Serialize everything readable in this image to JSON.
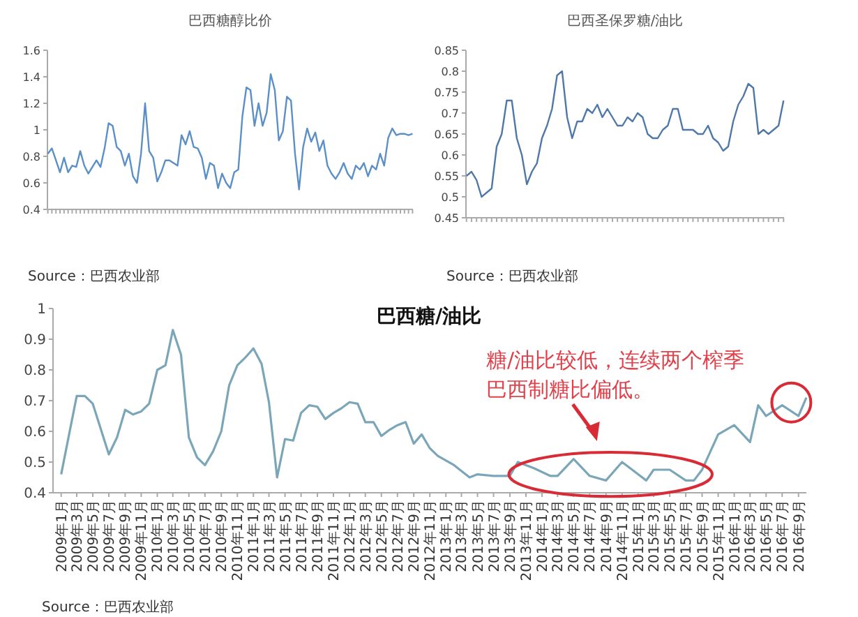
{
  "chart_data": [
    {
      "type": "line",
      "title": "巴西糖醇比价",
      "categories": [
        null,
        null,
        null,
        null,
        null,
        null,
        null,
        null,
        null,
        null,
        null,
        null,
        null,
        null,
        null,
        null,
        null,
        null,
        null,
        null,
        null,
        null,
        null,
        null,
        null,
        null,
        null,
        null,
        null,
        null,
        null,
        null,
        null,
        null,
        null,
        null,
        null,
        null,
        null,
        null,
        null,
        null,
        null,
        null,
        null,
        null,
        null,
        null,
        null,
        null,
        null,
        null,
        null,
        null,
        null,
        null,
        null,
        null,
        null,
        null,
        null,
        null,
        null,
        null,
        null,
        null,
        null,
        null,
        null,
        null,
        null,
        null,
        null,
        null,
        null,
        null,
        null,
        null,
        null,
        null,
        null,
        null,
        null,
        null,
        null,
        null,
        null,
        null,
        null,
        null,
        null
      ],
      "color": "#5b8fc7",
      "values": [
        0.82,
        0.86,
        0.77,
        0.68,
        0.79,
        0.68,
        0.73,
        0.72,
        0.84,
        0.73,
        0.67,
        0.72,
        0.77,
        0.72,
        0.86,
        1.05,
        1.03,
        0.87,
        0.84,
        0.73,
        0.82,
        0.65,
        0.6,
        0.82,
        1.2,
        0.84,
        0.79,
        0.61,
        0.68,
        0.77,
        0.77,
        0.75,
        0.73,
        0.96,
        0.89,
        0.99,
        0.87,
        0.86,
        0.79,
        0.63,
        0.75,
        0.73,
        0.56,
        0.67,
        0.6,
        0.56,
        0.68,
        0.7,
        1.1,
        1.32,
        1.3,
        1.03,
        1.2,
        1.03,
        1.13,
        1.42,
        1.3,
        0.92,
        0.99,
        1.25,
        1.22,
        0.82,
        0.55,
        0.87,
        1.01,
        0.91,
        0.98,
        0.84,
        0.92,
        0.73,
        0.67,
        0.63,
        0.68,
        0.75,
        0.67,
        0.63,
        0.73,
        0.7,
        0.75,
        0.65,
        0.73,
        0.7,
        0.82,
        0.73,
        0.94,
        1.01,
        0.96,
        0.97,
        0.97,
        0.96,
        0.97
      ],
      "ylim": [
        0.4,
        1.6
      ],
      "yticks": [
        0.4,
        0.6,
        0.8,
        1,
        1.2,
        1.4,
        1.6
      ],
      "tick_labels": "y",
      "annotations": [
        "Source：巴西农业部"
      ]
    },
    {
      "type": "line",
      "title": "巴西圣保罗糖/油比",
      "categories": [
        null,
        null,
        null,
        null,
        null,
        null,
        null,
        null,
        null,
        null,
        null,
        null,
        null,
        null,
        null,
        null,
        null,
        null,
        null,
        null,
        null,
        null,
        null,
        null,
        null,
        null,
        null,
        null,
        null,
        null,
        null,
        null,
        null,
        null,
        null,
        null,
        null,
        null,
        null,
        null,
        null,
        null,
        null,
        null,
        null,
        null,
        null,
        null,
        null,
        null,
        null,
        null,
        null,
        null,
        null,
        null,
        null,
        null,
        null,
        null,
        null,
        null,
        null,
        null
      ],
      "color": "#4f78a8",
      "values": [
        0.55,
        0.56,
        0.54,
        0.5,
        0.51,
        0.52,
        0.62,
        0.65,
        0.73,
        0.73,
        0.64,
        0.6,
        0.53,
        0.56,
        0.58,
        0.64,
        0.67,
        0.71,
        0.79,
        0.8,
        0.69,
        0.64,
        0.68,
        0.68,
        0.71,
        0.7,
        0.72,
        0.69,
        0.71,
        0.69,
        0.67,
        0.67,
        0.69,
        0.68,
        0.7,
        0.69,
        0.65,
        0.64,
        0.64,
        0.66,
        0.67,
        0.71,
        0.71,
        0.66,
        0.66,
        0.66,
        0.65,
        0.65,
        0.67,
        0.64,
        0.63,
        0.61,
        0.62,
        0.68,
        0.72,
        0.74,
        0.77,
        0.76,
        0.65,
        0.66,
        0.65,
        0.66,
        0.67,
        0.73
      ],
      "ylim": [
        0.45,
        0.85
      ],
      "yticks": [
        0.45,
        0.5,
        0.55,
        0.6,
        0.65,
        0.7,
        0.75,
        0.8,
        0.85
      ],
      "tick_labels": "y",
      "annotations": [
        "Source：巴西农业部"
      ]
    },
    {
      "type": "line",
      "title": "巴西糖/油比",
      "color": "#7aa6b8",
      "x": [
        "2009-01",
        "2009-03",
        "2009-04",
        "2009-05",
        "2009-07",
        "2009-08",
        "2009-09",
        "2009-10",
        "2009-11",
        "2009-12",
        "2010-01",
        "2010-02",
        "2010-03",
        "2010-04",
        "2010-05",
        "2010-06",
        "2010-07",
        "2010-08",
        "2010-09",
        "2010-10",
        "2010-11",
        "2010-12",
        "2011-01",
        "2011-02",
        "2011-03",
        "2011-04",
        "2011-05",
        "2011-06",
        "2011-07",
        "2011-08",
        "2011-09",
        "2011-10",
        "2011-11",
        "2011-12",
        "2012-01",
        "2012-02",
        "2012-03",
        "2012-04",
        "2012-05",
        "2012-06",
        "2012-07",
        "2012-08",
        "2012-09",
        "2012-10",
        "2012-11",
        "2012-12",
        "2013-02",
        "2013-04",
        "2013-05",
        "2013-07",
        "2013-09",
        "2013-10",
        "2013-12",
        "2014-02",
        "2014-03",
        "2014-05",
        "2014-07",
        "2014-09",
        "2014-11",
        "2015-01",
        "2015-02",
        "2015-03",
        "2015-05",
        "2015-07",
        "2015-08",
        "2015-09",
        "2015-11",
        "2016-01",
        "2016-03",
        "2016-04",
        "2016-05",
        "2016-07",
        "2016-09",
        "2016-10"
      ],
      "values": [
        0.46,
        0.715,
        0.715,
        0.69,
        0.525,
        0.58,
        0.67,
        0.655,
        0.665,
        0.69,
        0.8,
        0.815,
        0.93,
        0.85,
        0.58,
        0.515,
        0.49,
        0.535,
        0.6,
        0.75,
        0.815,
        0.84,
        0.87,
        0.82,
        0.695,
        0.45,
        0.575,
        0.57,
        0.66,
        0.685,
        0.68,
        0.64,
        0.66,
        0.675,
        0.695,
        0.69,
        0.63,
        0.63,
        0.585,
        0.605,
        0.62,
        0.63,
        0.56,
        0.59,
        0.545,
        0.52,
        0.49,
        0.45,
        0.46,
        0.455,
        0.455,
        0.5,
        0.48,
        0.455,
        0.455,
        0.51,
        0.455,
        0.44,
        0.5,
        0.46,
        0.44,
        0.475,
        0.475,
        0.44,
        0.44,
        0.475,
        0.59,
        0.62,
        0.565,
        0.685,
        0.65,
        0.685,
        0.65,
        0.71
      ],
      "xlim": [
        "2008-12",
        "2016-10"
      ],
      "xticks": [
        {
          "value": "2009-01",
          "label": "2009年1月"
        },
        {
          "value": "2009-03",
          "label": "2009年3月"
        },
        {
          "value": "2009-05",
          "label": "2009年5月"
        },
        {
          "value": "2009-07",
          "label": "2009年7月"
        },
        {
          "value": "2009-09",
          "label": "2009年9月"
        },
        {
          "value": "2009-11",
          "label": "2009年11月"
        },
        {
          "value": "2010-01",
          "label": "2010年1月"
        },
        {
          "value": "2010-03",
          "label": "2010年3月"
        },
        {
          "value": "2010-05",
          "label": "2010年5月"
        },
        {
          "value": "2010-07",
          "label": "2010年7月"
        },
        {
          "value": "2010-09",
          "label": "2010年9月"
        },
        {
          "value": "2010-11",
          "label": "2010年11月"
        },
        {
          "value": "2011-01",
          "label": "2011年1月"
        },
        {
          "value": "2011-03",
          "label": "2011年3月"
        },
        {
          "value": "2011-05",
          "label": "2011年5月"
        },
        {
          "value": "2011-07",
          "label": "2011年7月"
        },
        {
          "value": "2011-09",
          "label": "2011年9月"
        },
        {
          "value": "2011-11",
          "label": "2011年11月"
        },
        {
          "value": "2012-01",
          "label": "2012年1月"
        },
        {
          "value": "2012-03",
          "label": "2012年3月"
        },
        {
          "value": "2012-05",
          "label": "2012年5月"
        },
        {
          "value": "2012-07",
          "label": "2012年7月"
        },
        {
          "value": "2012-09",
          "label": "2012年9月"
        },
        {
          "value": "2012-11",
          "label": "2012年11月"
        },
        {
          "value": "2013-01",
          "label": "2013年1月"
        },
        {
          "value": "2013-03",
          "label": "2013年3月"
        },
        {
          "value": "2013-05",
          "label": "2013年5月"
        },
        {
          "value": "2013-07",
          "label": "2013年7月"
        },
        {
          "value": "2013-09",
          "label": "2013年9月"
        },
        {
          "value": "2013-11",
          "label": "2013年11月"
        },
        {
          "value": "2014-01",
          "label": "2014年1月"
        },
        {
          "value": "2014-03",
          "label": "2014年3月"
        },
        {
          "value": "2014-05",
          "label": "2014年5月"
        },
        {
          "value": "2014-07",
          "label": "2014年7月"
        },
        {
          "value": "2014-09",
          "label": "2014年9月"
        },
        {
          "value": "2014-11",
          "label": "2014年11月"
        },
        {
          "value": "2015-01",
          "label": "2015年1月"
        },
        {
          "value": "2015-03",
          "label": "2015年3月"
        },
        {
          "value": "2015-05",
          "label": "2015年5月"
        },
        {
          "value": "2015-07",
          "label": "2015年7月"
        },
        {
          "value": "2015-09",
          "label": "2015年9月"
        },
        {
          "value": "2015-11",
          "label": "2015年11月"
        },
        {
          "value": "2016-01",
          "label": "2016年1月"
        },
        {
          "value": "2016-03",
          "label": "2016年3月"
        },
        {
          "value": "2016-05",
          "label": "2016年5月"
        },
        {
          "value": "2016-07",
          "label": "2016年7月"
        },
        {
          "value": "2016-09",
          "label": "2016年9月"
        }
      ],
      "ylim": [
        0.4,
        1
      ],
      "yticks": [
        0.4,
        0.5,
        0.6,
        0.7,
        0.8,
        0.9,
        1
      ],
      "annotations": [
        "糖/油比较低，连续两个榨季",
        "巴西制糖比偏低。",
        "Source：巴西农业部"
      ]
    }
  ]
}
